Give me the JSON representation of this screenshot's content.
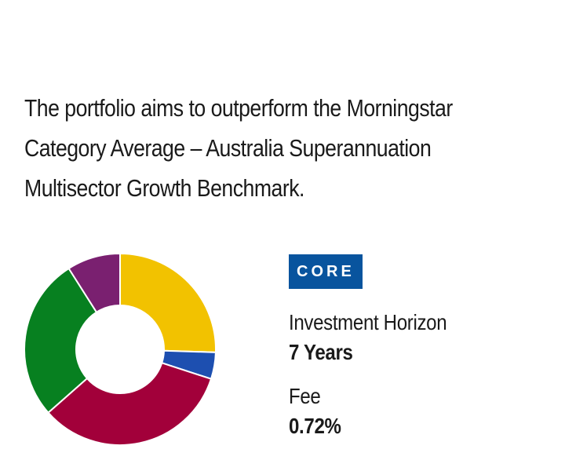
{
  "objective": {
    "line1": "The portfolio aims to outperform the Morningstar",
    "line2": "Category Average – Australia Superannuation",
    "line3": "Multisector Growth Benchmark."
  },
  "badge": {
    "label": "CORE",
    "color": "#08549e"
  },
  "horizon": {
    "label": "Investment Horizon",
    "value": "7 Years"
  },
  "fee": {
    "label": "Fee",
    "value": "0.72%"
  },
  "chart_data": {
    "type": "pie",
    "donut": true,
    "title": "",
    "slices": [
      {
        "value": 25.5,
        "color": "#f2c200"
      },
      {
        "value": 4.5,
        "color": "#1d4fb0"
      },
      {
        "value": 33.5,
        "color": "#a2003a"
      },
      {
        "value": 27.5,
        "color": "#078020"
      },
      {
        "value": 9.0,
        "color": "#7a2070"
      }
    ],
    "labels_shown": false,
    "legend": "none"
  }
}
